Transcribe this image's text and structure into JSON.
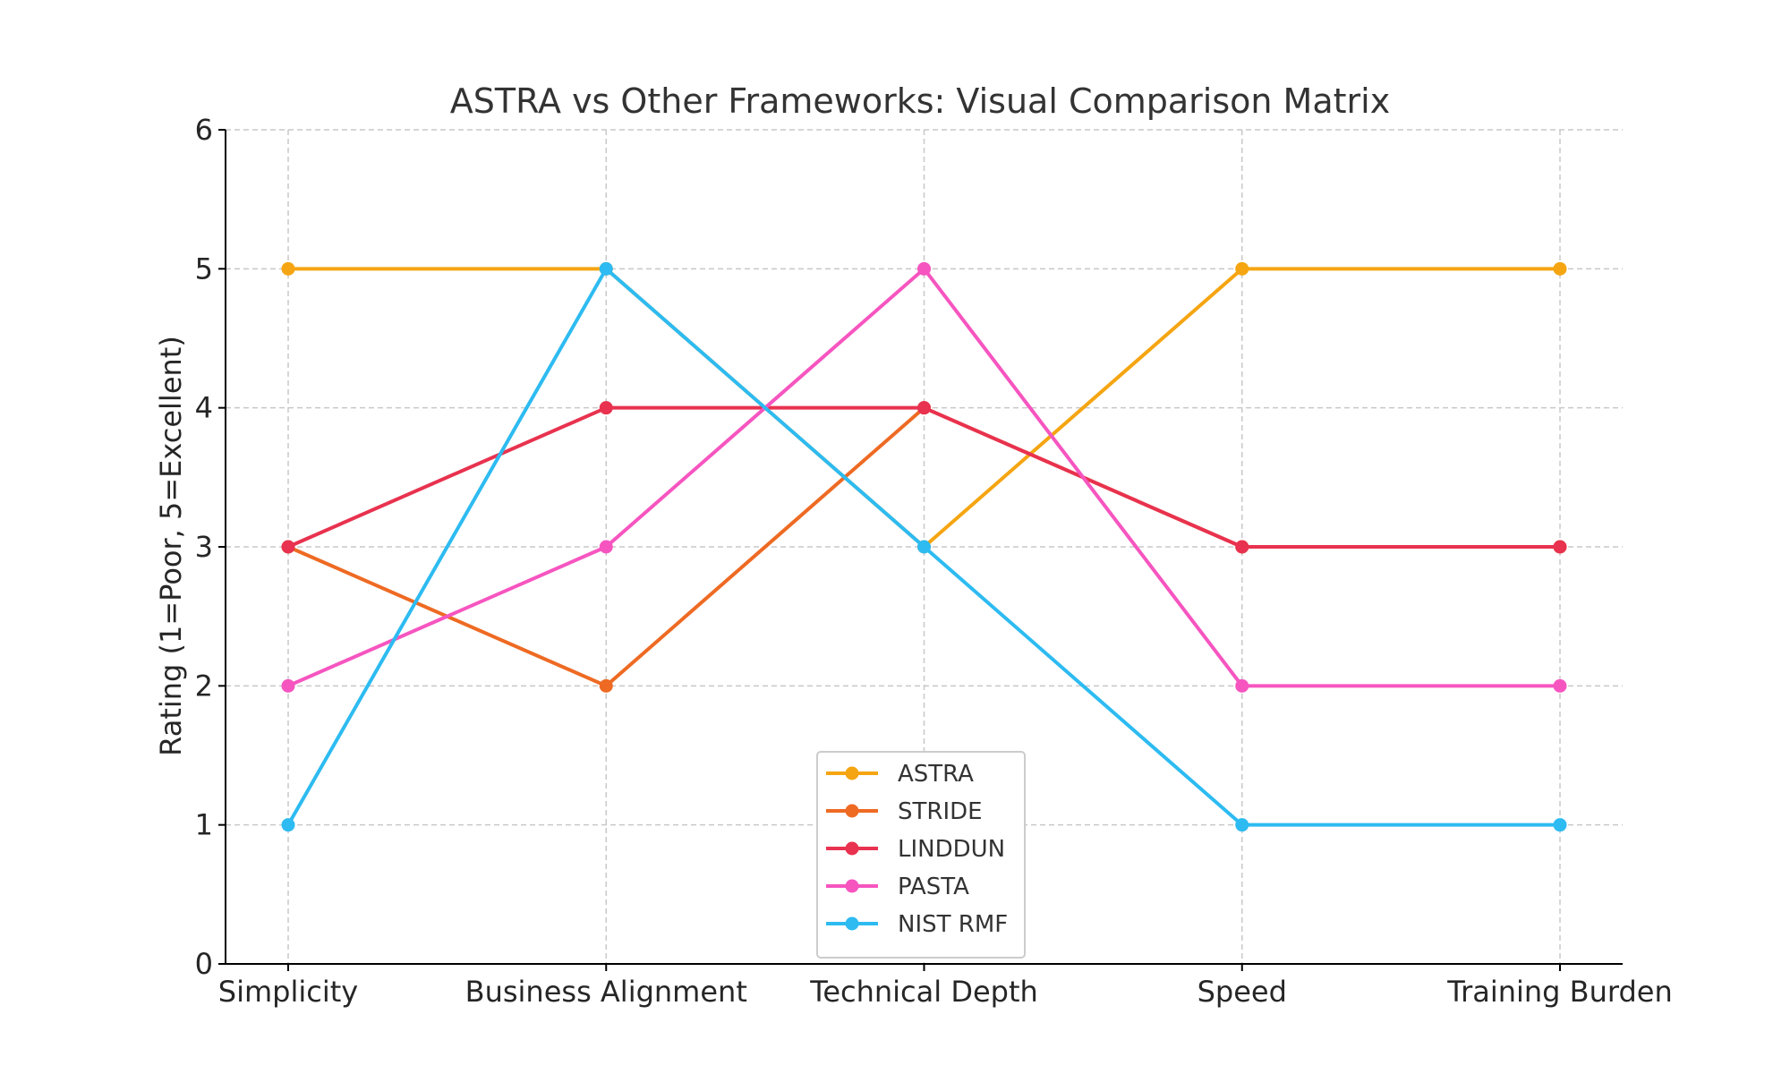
{
  "chart_data": {
    "type": "line",
    "title": "ASTRA vs Other Frameworks: Visual Comparison Matrix",
    "xlabel": "",
    "ylabel": "Rating (1=Poor, 5=Excellent)",
    "categories": [
      "Simplicity",
      "Business Alignment",
      "Technical Depth",
      "Speed",
      "Training Burden"
    ],
    "ylim": [
      0,
      6
    ],
    "yticks": [
      0,
      1,
      2,
      3,
      4,
      5,
      6
    ],
    "grid": true,
    "legend_position": "lower-center",
    "series": [
      {
        "name": "ASTRA",
        "color": "#F5A511",
        "values": [
          5,
          5,
          3,
          5,
          5
        ]
      },
      {
        "name": "STRIDE",
        "color": "#EE6A23",
        "values": [
          3,
          2,
          4,
          3,
          3
        ]
      },
      {
        "name": "LINDDUN",
        "color": "#E8324F",
        "values": [
          3,
          4,
          4,
          3,
          3
        ]
      },
      {
        "name": "PASTA",
        "color": "#F655C0",
        "values": [
          2,
          3,
          5,
          2,
          2
        ]
      },
      {
        "name": "NIST RMF",
        "color": "#2DBBF1",
        "values": [
          1,
          5,
          3,
          1,
          1
        ]
      }
    ]
  }
}
